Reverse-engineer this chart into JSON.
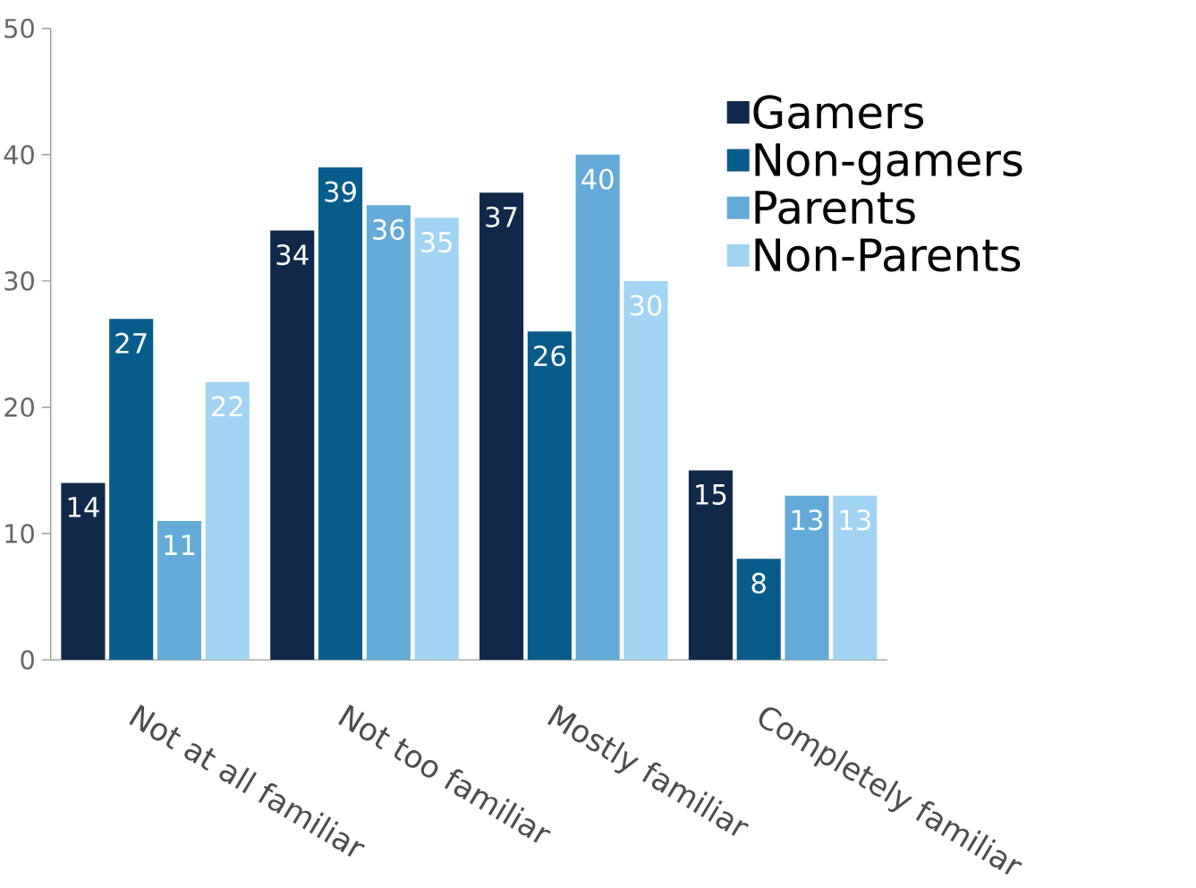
{
  "chart_data": {
    "type": "bar",
    "categories": [
      "Not at all familiar",
      "Not too familiar",
      "Mostly familiar",
      "Completely familiar"
    ],
    "series": [
      {
        "name": "Gamers",
        "color": "#10284a",
        "values": [
          14,
          34,
          37,
          15
        ]
      },
      {
        "name": "Non-gamers",
        "color": "#085c8c",
        "values": [
          27,
          39,
          26,
          8
        ]
      },
      {
        "name": "Parents",
        "color": "#63aad8",
        "values": [
          11,
          36,
          40,
          13
        ]
      },
      {
        "name": "Non-Parents",
        "color": "#a0d4f2",
        "values": [
          22,
          35,
          30,
          13
        ]
      }
    ],
    "ylim": [
      0,
      50
    ],
    "yticks": [
      0,
      10,
      20,
      30,
      40,
      50
    ],
    "data_labels": true,
    "legend": "top right"
  }
}
